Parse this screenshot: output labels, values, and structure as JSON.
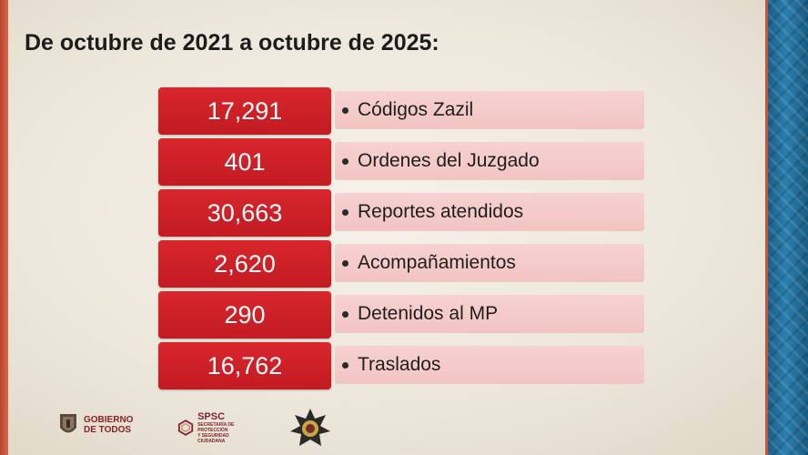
{
  "slide": {
    "title": "De octubre de 2021 a octubre de 2025:",
    "rows": [
      {
        "value": "17,291",
        "label": "Códigos Zazil"
      },
      {
        "value": "401",
        "label": "Ordenes del Juzgado"
      },
      {
        "value": "30,663",
        "label": "Reportes atendidos"
      },
      {
        "value": "2,620",
        "label": "Acompañamientos"
      },
      {
        "value": "290",
        "label": "Detenidos al MP"
      },
      {
        "value": "16,762",
        "label": "Traslados"
      }
    ]
  },
  "footer": {
    "gobierno_line1": "GOBIERNO",
    "gobierno_line2": "DE TODOS",
    "spsc_title": "SPSC",
    "spsc_sub1": "SECRETARÍA DE PROTECCIÓN",
    "spsc_sub2": "Y SEGURIDAD CIUDADANA"
  },
  "colors": {
    "number_box": "#c91f26",
    "label_box": "#f4cbc9",
    "left_band": "#c44f36",
    "right_band": "#1f6b97"
  }
}
